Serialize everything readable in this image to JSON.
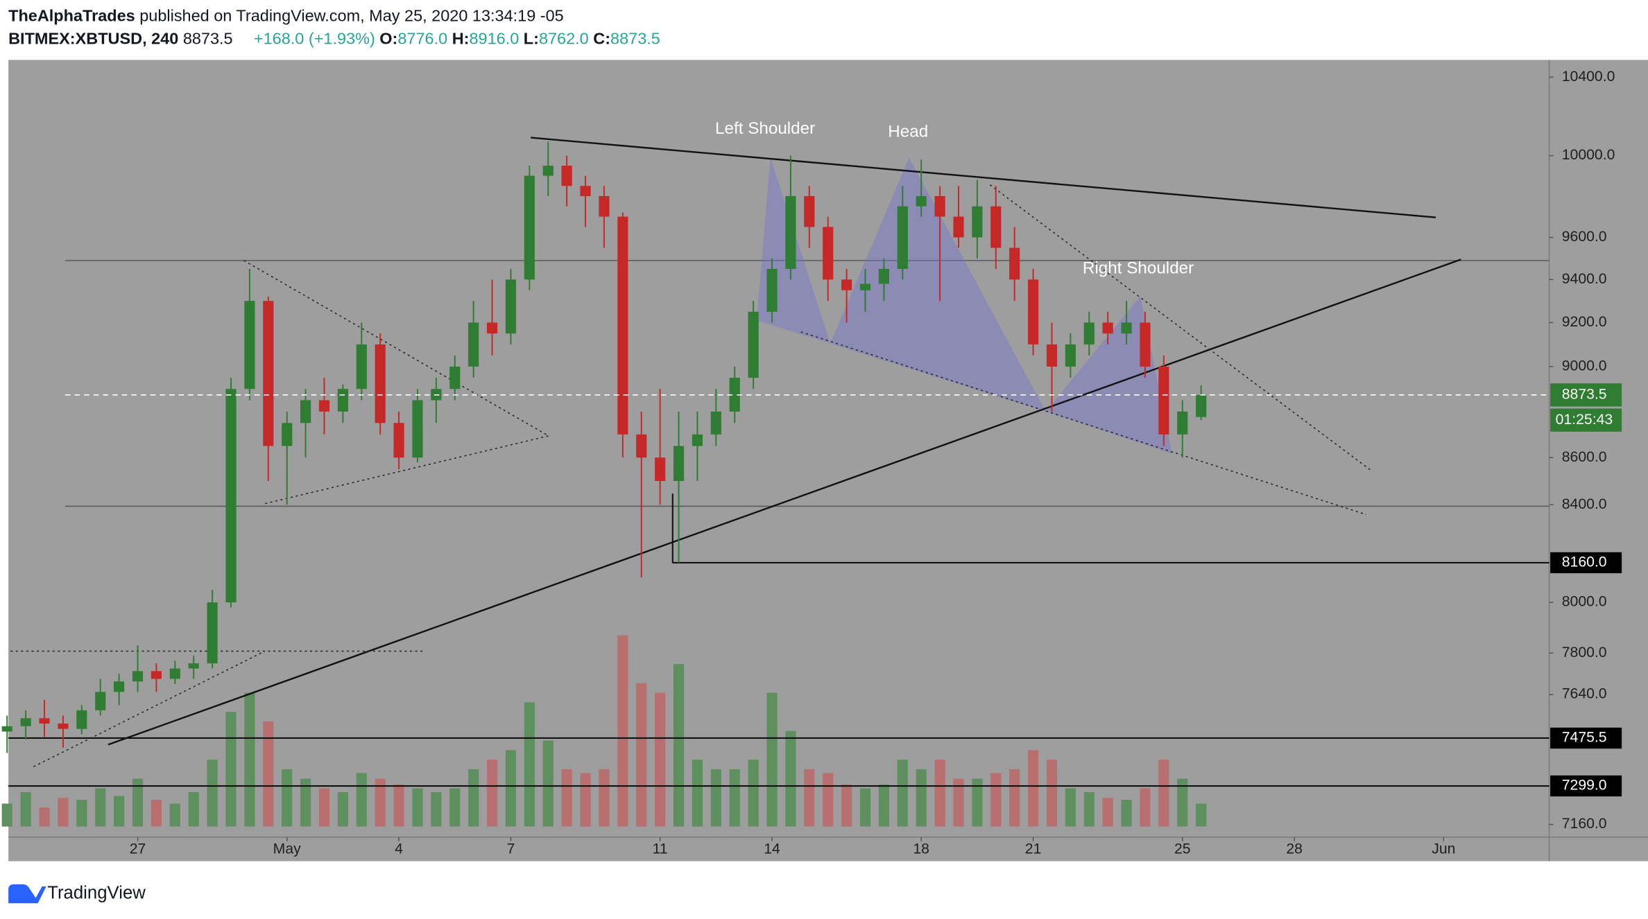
{
  "header": {
    "author": "TheAlphaTrades",
    "published": "published on TradingView.com, May 25, 2020 13:34:19 -05",
    "symbol": "BITMEX:XBTUSD, 240",
    "last": "8873.5",
    "change": "+168.0 (+1.93%)",
    "ohlc": [
      {
        "label": "O:",
        "value": "8776.0"
      },
      {
        "label": "H:",
        "value": "8916.0"
      },
      {
        "label": "L:",
        "value": "8762.0"
      },
      {
        "label": "C:",
        "value": "8873.5"
      }
    ]
  },
  "footer": {
    "brand": "TradingView"
  },
  "chart_data": {
    "type": "candlestick",
    "log_scale": true,
    "up_color": "#2e7d32",
    "down_color": "#c62828",
    "volume_up_color": "#5e8f5e",
    "volume_down_color": "#b86f6f",
    "annotations": [
      "Left Shoulder",
      "Head",
      "Right Shoulder"
    ],
    "categories": [
      null,
      null,
      null,
      null,
      null,
      null,
      null,
      null,
      null,
      null,
      null,
      null,
      null,
      null,
      null,
      null,
      null,
      null,
      null,
      null,
      null,
      null,
      null,
      null,
      null,
      null,
      null,
      null,
      null,
      null,
      null,
      null,
      null,
      null,
      null,
      null,
      null,
      null,
      null,
      null,
      null,
      null,
      null,
      null,
      null,
      null,
      null,
      null,
      null,
      null,
      null,
      null,
      null,
      null,
      null,
      null,
      null,
      null,
      null,
      null,
      null,
      null,
      null,
      null,
      null
    ],
    "open": [
      7500,
      7520,
      7550,
      7530,
      7510,
      7580,
      7650,
      7690,
      7730,
      7700,
      7740,
      7760,
      8000,
      8900,
      9300,
      8650,
      8750,
      8850,
      8800,
      8900,
      9100,
      8750,
      8600,
      8850,
      8900,
      9000,
      9200,
      9150,
      9400,
      9900,
      9950,
      9850,
      9800,
      9700,
      8700,
      8600,
      8500,
      8650,
      8700,
      8800,
      8950,
      9250,
      9450,
      9800,
      9650,
      9400,
      9350,
      9380,
      9450,
      9750,
      9800,
      9700,
      9600,
      9750,
      9550,
      9400,
      9100,
      9000,
      9100,
      9200,
      9150,
      9200,
      9000,
      8700,
      8776
    ],
    "high": [
      7560,
      7580,
      7620,
      7560,
      7600,
      7700,
      7720,
      7830,
      7760,
      7770,
      7790,
      8050,
      8950,
      9450,
      9320,
      8800,
      8900,
      8950,
      8920,
      9200,
      9150,
      8800,
      8900,
      8950,
      9050,
      9300,
      9400,
      9450,
      9950,
      10070,
      10000,
      9900,
      9850,
      9720,
      8800,
      8900,
      8800,
      8800,
      8900,
      9000,
      9300,
      9500,
      10000,
      9850,
      9700,
      9450,
      9450,
      9500,
      9850,
      9980,
      9850,
      9850,
      9880,
      9850,
      9650,
      9450,
      9200,
      9150,
      9250,
      9250,
      9300,
      9250,
      9050,
      8850,
      8916
    ],
    "low": [
      7420,
      7470,
      7480,
      7440,
      7490,
      7560,
      7600,
      7650,
      7650,
      7680,
      7700,
      7740,
      7980,
      8850,
      8500,
      8400,
      8600,
      8700,
      8750,
      8850,
      8700,
      8550,
      8580,
      8750,
      8850,
      8950,
      9050,
      9100,
      9350,
      9800,
      9750,
      9650,
      9550,
      8600,
      8100,
      8400,
      8160,
      8500,
      8650,
      8750,
      8900,
      9200,
      9400,
      9550,
      9300,
      9200,
      9250,
      9300,
      9400,
      9700,
      9300,
      9550,
      9500,
      9450,
      9300,
      9050,
      8800,
      8950,
      9050,
      9100,
      9100,
      8950,
      8650,
      8600,
      8762
    ],
    "close": [
      7520,
      7550,
      7530,
      7510,
      7580,
      7650,
      7690,
      7730,
      7700,
      7740,
      7760,
      8000,
      8900,
      9300,
      8650,
      8750,
      8850,
      8800,
      8900,
      9100,
      8750,
      8600,
      8850,
      8900,
      9000,
      9200,
      9150,
      9400,
      9900,
      9950,
      9850,
      9800,
      9700,
      8700,
      8600,
      8500,
      8650,
      8700,
      8800,
      8950,
      9250,
      9450,
      9800,
      9650,
      9400,
      9350,
      9380,
      9450,
      9750,
      9800,
      9700,
      9600,
      9750,
      9550,
      9400,
      9100,
      9000,
      9100,
      9200,
      9150,
      9200,
      9000,
      8700,
      8800,
      8873.5
    ],
    "volume": [
      12,
      18,
      10,
      15,
      14,
      20,
      16,
      25,
      14,
      12,
      18,
      35,
      60,
      70,
      55,
      30,
      25,
      20,
      18,
      28,
      25,
      22,
      20,
      18,
      20,
      30,
      35,
      40,
      65,
      45,
      30,
      28,
      30,
      100,
      75,
      70,
      85,
      35,
      30,
      30,
      35,
      70,
      50,
      30,
      28,
      22,
      20,
      22,
      35,
      30,
      35,
      25,
      25,
      28,
      30,
      40,
      35,
      20,
      18,
      15,
      14,
      20,
      35,
      25,
      12
    ],
    "xlim": [
      0.07,
      82.66
    ],
    "xticks": [
      {
        "value": 7,
        "label": "27"
      },
      {
        "value": 15,
        "label": "May"
      },
      {
        "value": 21,
        "label": "4"
      },
      {
        "value": 27,
        "label": "7"
      },
      {
        "value": 35,
        "label": "11"
      },
      {
        "value": 41,
        "label": "14"
      },
      {
        "value": 49,
        "label": "18"
      },
      {
        "value": 55,
        "label": "21"
      },
      {
        "value": 63,
        "label": "25"
      },
      {
        "value": 69,
        "label": "28"
      },
      {
        "value": 77,
        "label": "Jun"
      }
    ],
    "ylim": [
      7115,
      10490
    ],
    "yticks": [
      {
        "value": 10400,
        "label": "10400.0"
      },
      {
        "value": 10000,
        "label": "10000.0"
      },
      {
        "value": 9600,
        "label": "9600.0"
      },
      {
        "value": 9400,
        "label": "9400.0"
      },
      {
        "value": 9200,
        "label": "9200.0"
      },
      {
        "value": 9000,
        "label": "9000.0"
      },
      {
        "value": 8600,
        "label": "8600.0"
      },
      {
        "value": 8400,
        "label": "8400.0"
      },
      {
        "value": 8000,
        "label": "8000.0"
      },
      {
        "value": 7800,
        "label": "7800.0"
      },
      {
        "value": 7640,
        "label": "7640.0"
      },
      {
        "value": 7160,
        "label": "7160.0"
      }
    ],
    "last_price": {
      "value": 8873.5,
      "label": "8873.5"
    },
    "countdown": "01:25:43",
    "price_lines": [
      {
        "value": 8160,
        "label": "8160.0"
      },
      {
        "value": 7475.5,
        "label": "7475.5"
      },
      {
        "value": 7299,
        "label": "7299.0"
      }
    ]
  }
}
